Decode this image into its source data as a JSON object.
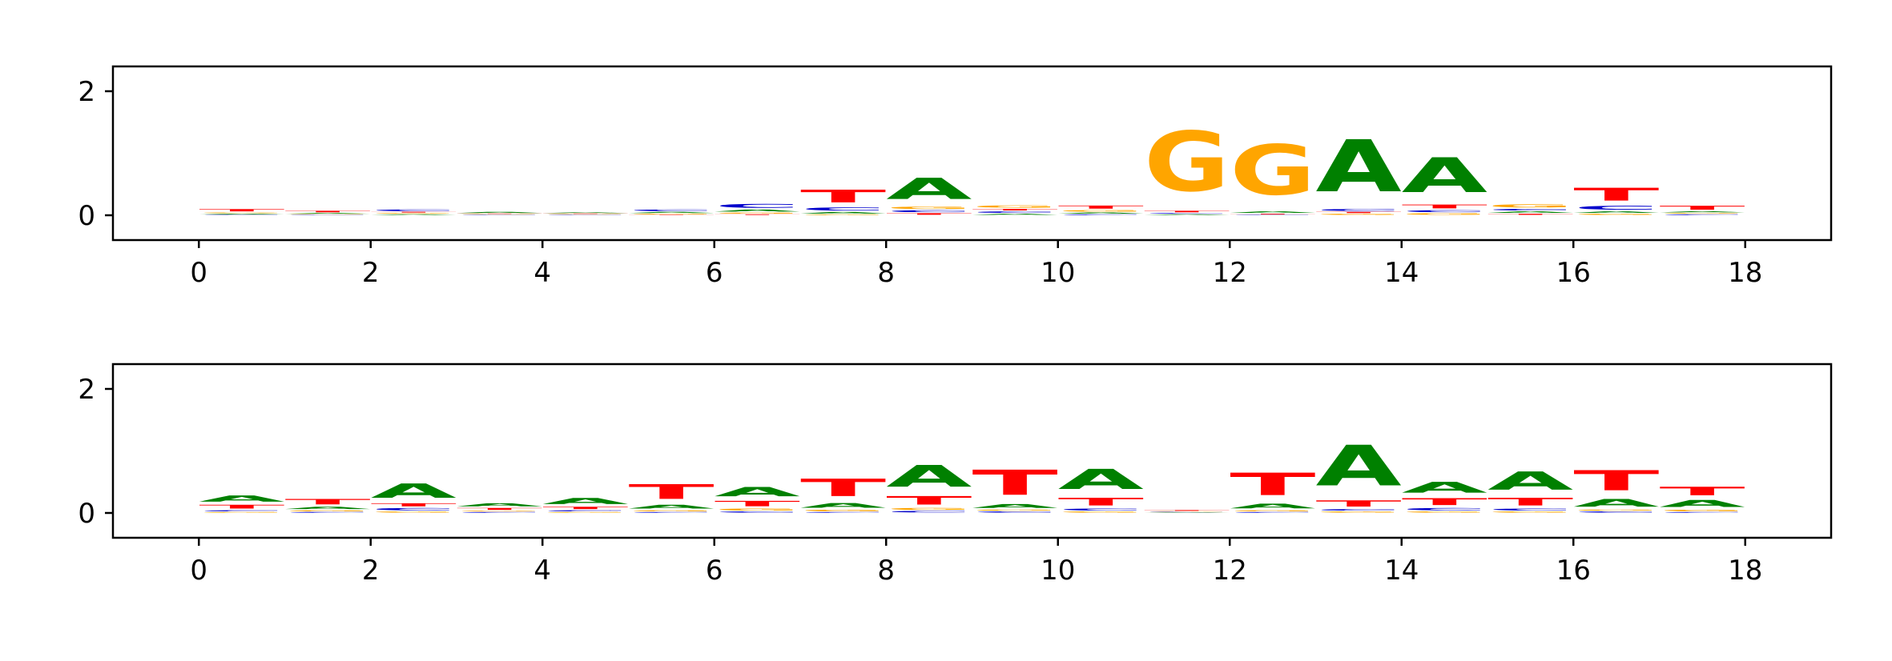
{
  "colors": {
    "A": "#008000",
    "C": "#0000cc",
    "G": "#ffa500",
    "T": "#ff0000"
  },
  "chart_data": [
    {
      "type": "sequence-logo",
      "title": "",
      "xlabel": "",
      "ylabel": "",
      "xlim": [
        -1,
        19
      ],
      "ylim": [
        -0.4,
        2.4
      ],
      "xticks": [
        "0",
        "2",
        "4",
        "6",
        "8",
        "10",
        "12",
        "14",
        "16",
        "18"
      ],
      "yticks": [
        "0",
        "2"
      ],
      "positions": [
        {
          "x": 0.5,
          "heights": {
            "A": 0.02,
            "C": 0.01,
            "G": 0.02,
            "T": 0.06
          }
        },
        {
          "x": 1.5,
          "heights": {
            "A": 0.02,
            "C": 0.01,
            "G": 0.01,
            "T": 0.04
          }
        },
        {
          "x": 2.5,
          "heights": {
            "A": 0.02,
            "C": 0.04,
            "G": 0.02,
            "T": 0.02
          }
        },
        {
          "x": 3.5,
          "heights": {
            "A": 0.03,
            "C": 0.01,
            "G": 0.01,
            "T": 0.01
          }
        },
        {
          "x": 4.5,
          "heights": {
            "A": 0.02,
            "C": 0.01,
            "G": 0.01,
            "T": 0.01
          }
        },
        {
          "x": 5.5,
          "heights": {
            "A": 0.03,
            "C": 0.04,
            "G": 0.02,
            "T": 0.01
          }
        },
        {
          "x": 6.5,
          "heights": {
            "A": 0.05,
            "C": 0.1,
            "G": 0.03,
            "T": 0.02
          }
        },
        {
          "x": 7.5,
          "heights": {
            "A": 0.04,
            "C": 0.08,
            "G": 0.02,
            "T": 0.33
          }
        },
        {
          "x": 8.5,
          "heights": {
            "A": 0.55,
            "C": 0.05,
            "G": 0.06,
            "T": 0.04
          }
        },
        {
          "x": 9.5,
          "heights": {
            "A": 0.03,
            "C": 0.04,
            "G": 0.06,
            "T": 0.04
          }
        },
        {
          "x": 10.5,
          "heights": {
            "A": 0.03,
            "C": 0.02,
            "G": 0.04,
            "T": 0.08
          }
        },
        {
          "x": 11.5,
          "heights": {
            "A": 0.02,
            "C": 0.02,
            "G": 1.55,
            "T": 0.04
          }
        },
        {
          "x": 12.5,
          "heights": {
            "A": 0.04,
            "C": 0.01,
            "G": 1.3,
            "T": 0.02
          }
        },
        {
          "x": 13.5,
          "heights": {
            "A": 1.35,
            "C": 0.05,
            "G": 0.03,
            "T": 0.03
          }
        },
        {
          "x": 14.5,
          "heights": {
            "A": 0.9,
            "C": 0.05,
            "G": 0.04,
            "T": 0.1
          }
        },
        {
          "x": 15.5,
          "heights": {
            "A": 0.04,
            "C": 0.04,
            "G": 0.08,
            "T": 0.03
          }
        },
        {
          "x": 16.5,
          "heights": {
            "A": 0.04,
            "C": 0.1,
            "G": 0.03,
            "T": 0.33
          }
        },
        {
          "x": 17.5,
          "heights": {
            "A": 0.03,
            "C": 0.02,
            "G": 0.02,
            "T": 0.1
          }
        }
      ]
    },
    {
      "type": "sequence-logo",
      "title": "",
      "xlabel": "",
      "ylabel": "",
      "xlim": [
        -1,
        19
      ],
      "ylim": [
        -0.4,
        2.4
      ],
      "xticks": [
        "0",
        "2",
        "4",
        "6",
        "8",
        "10",
        "12",
        "14",
        "16",
        "18"
      ],
      "yticks": [
        "0",
        "2"
      ],
      "positions": [
        {
          "x": 0.5,
          "heights": {
            "A": 0.16,
            "C": 0.03,
            "G": 0.02,
            "T": 0.1
          }
        },
        {
          "x": 1.5,
          "heights": {
            "A": 0.06,
            "C": 0.02,
            "G": 0.03,
            "T": 0.14
          }
        },
        {
          "x": 2.5,
          "heights": {
            "A": 0.37,
            "C": 0.06,
            "G": 0.03,
            "T": 0.08
          }
        },
        {
          "x": 3.5,
          "heights": {
            "A": 0.08,
            "C": 0.02,
            "G": 0.02,
            "T": 0.05
          }
        },
        {
          "x": 4.5,
          "heights": {
            "A": 0.16,
            "C": 0.03,
            "G": 0.02,
            "T": 0.06
          }
        },
        {
          "x": 5.5,
          "heights": {
            "A": 0.1,
            "C": 0.02,
            "G": 0.03,
            "T": 0.38
          }
        },
        {
          "x": 6.5,
          "heights": {
            "A": 0.24,
            "C": 0.03,
            "G": 0.05,
            "T": 0.14
          }
        },
        {
          "x": 7.5,
          "heights": {
            "A": 0.12,
            "C": 0.02,
            "G": 0.04,
            "T": 0.45
          }
        },
        {
          "x": 8.5,
          "heights": {
            "A": 0.56,
            "C": 0.04,
            "G": 0.05,
            "T": 0.22
          }
        },
        {
          "x": 9.5,
          "heights": {
            "A": 0.1,
            "C": 0.03,
            "G": 0.03,
            "T": 0.65
          }
        },
        {
          "x": 10.5,
          "heights": {
            "A": 0.52,
            "C": 0.05,
            "G": 0.03,
            "T": 0.2
          }
        },
        {
          "x": 11.5,
          "heights": {
            "A": 0.01,
            "C": 0.01,
            "G": 0.01,
            "T": 0.02
          }
        },
        {
          "x": 12.5,
          "heights": {
            "A": 0.12,
            "C": 0.02,
            "G": 0.03,
            "T": 0.58
          }
        },
        {
          "x": 13.5,
          "heights": {
            "A": 1.05,
            "C": 0.04,
            "G": 0.03,
            "T": 0.16
          }
        },
        {
          "x": 14.5,
          "heights": {
            "A": 0.28,
            "C": 0.06,
            "G": 0.03,
            "T": 0.18
          }
        },
        {
          "x": 15.5,
          "heights": {
            "A": 0.47,
            "C": 0.05,
            "G": 0.03,
            "T": 0.2
          }
        },
        {
          "x": 16.5,
          "heights": {
            "A": 0.2,
            "C": 0.03,
            "G": 0.03,
            "T": 0.52
          }
        },
        {
          "x": 17.5,
          "heights": {
            "A": 0.18,
            "C": 0.02,
            "G": 0.04,
            "T": 0.22
          }
        }
      ]
    }
  ]
}
